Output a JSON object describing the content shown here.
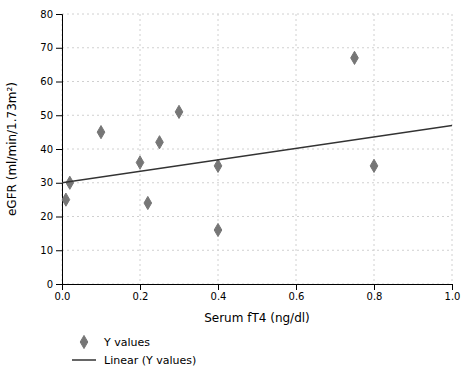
{
  "chart_data": {
    "type": "scatter",
    "xlabel": "Serum fT4 (ng/dl)",
    "ylabel": "eGFR (ml/min/1.73m²)",
    "series": [
      {
        "name": "Y values",
        "type": "scatter",
        "marker": "diamond",
        "color": "#767676",
        "x": [
          0.01,
          0.02,
          0.1,
          0.2,
          0.22,
          0.25,
          0.3,
          0.4,
          0.4,
          0.75,
          0.8
        ],
        "values": [
          25,
          30,
          45,
          36,
          24,
          42,
          51,
          35,
          16,
          67,
          35
        ]
      },
      {
        "name": "Linear (Y values)",
        "type": "line",
        "color": "#333333",
        "x": [
          0,
          1
        ],
        "values": [
          30,
          47
        ]
      }
    ],
    "xlim": [
      0,
      1
    ],
    "ylim": [
      0,
      80
    ],
    "xticks": [
      {
        "value": 0,
        "label": "0.0"
      },
      0.2,
      0.4,
      0.6,
      0.8,
      {
        "value": 1,
        "label": "1.0"
      }
    ],
    "yticks": [
      0,
      10,
      20,
      30,
      40,
      50,
      60,
      70,
      80
    ],
    "grid": true,
    "legend": "bottom"
  }
}
